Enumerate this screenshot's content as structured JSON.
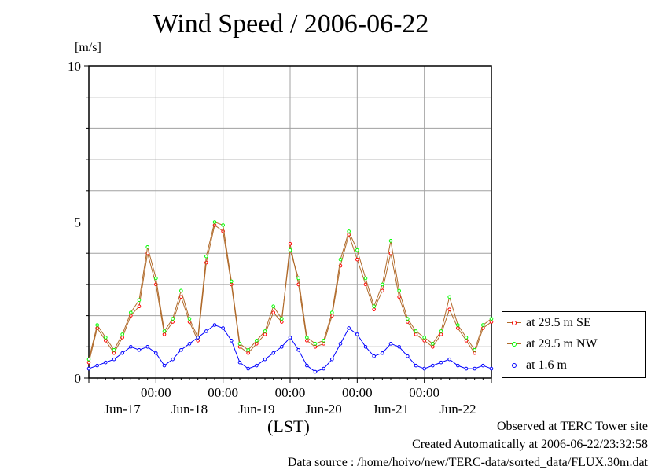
{
  "title": "Wind Speed / 2006-06-22",
  "footer": {
    "line1": "Observed at TERC Tower site",
    "line2": "Created Automatically at 2006-06-22/23:32:58",
    "line3": "Data source : /home/hoivo/new/TERC-data/sorted_data/FLUX.30m.dat"
  },
  "chart_data": {
    "type": "line",
    "title": "Wind Speed / 2006-06-22",
    "ylabel": "[m/s]",
    "xlabel": "(LST)",
    "ylim": [
      0,
      10
    ],
    "xlim_hours": [
      0,
      144
    ],
    "y_ticks": [
      "0",
      "5",
      "10"
    ],
    "x_time_ticks": [
      "00:00",
      "00:00",
      "00:00",
      "00:00",
      "00:00"
    ],
    "x_date_labels": [
      "Jun-17",
      "Jun-18",
      "Jun-19",
      "Jun-20",
      "Jun-21",
      "Jun-22"
    ],
    "grid": true,
    "legend_position": "right",
    "series": [
      {
        "name": "at 29.5 m SE",
        "color": "#ff0000",
        "line_color": "#b06a2a",
        "x_hours": [
          0,
          3,
          6,
          9,
          12,
          15,
          18,
          21,
          24,
          27,
          30,
          33,
          36,
          39,
          42,
          45,
          48,
          51,
          54,
          57,
          60,
          63,
          66,
          69,
          72,
          75,
          78,
          81,
          84,
          87,
          90,
          93,
          96,
          99,
          102,
          105,
          108,
          111,
          114,
          117,
          120,
          123,
          126,
          129,
          132,
          135,
          138,
          141,
          144
        ],
        "values": [
          0.5,
          1.6,
          1.2,
          0.8,
          1.3,
          2.0,
          2.3,
          4.0,
          3.0,
          1.4,
          1.8,
          2.6,
          1.8,
          1.2,
          3.7,
          4.9,
          4.7,
          3.0,
          1.0,
          0.8,
          1.1,
          1.4,
          2.1,
          1.8,
          4.3,
          3.0,
          1.2,
          1.0,
          1.1,
          2.0,
          3.6,
          4.6,
          3.8,
          3.0,
          2.2,
          2.8,
          4.0,
          2.6,
          1.8,
          1.4,
          1.2,
          1.0,
          1.4,
          2.2,
          1.6,
          1.2,
          0.8,
          1.6,
          1.8
        ]
      },
      {
        "name": "at 29.5 m NW",
        "color": "#00ff00",
        "line_color": "#b06a2a",
        "x_hours": [
          0,
          3,
          6,
          9,
          12,
          15,
          18,
          21,
          24,
          27,
          30,
          33,
          36,
          39,
          42,
          45,
          48,
          51,
          54,
          57,
          60,
          63,
          66,
          69,
          72,
          75,
          78,
          81,
          84,
          87,
          90,
          93,
          96,
          99,
          102,
          105,
          108,
          111,
          114,
          117,
          120,
          123,
          126,
          129,
          132,
          135,
          138,
          141,
          144
        ],
        "values": [
          0.6,
          1.7,
          1.3,
          0.9,
          1.4,
          2.1,
          2.5,
          4.2,
          3.2,
          1.5,
          1.9,
          2.8,
          1.9,
          1.3,
          3.9,
          5.0,
          4.9,
          3.1,
          1.1,
          0.9,
          1.2,
          1.5,
          2.3,
          1.9,
          4.1,
          3.2,
          1.3,
          1.1,
          1.2,
          2.1,
          3.8,
          4.7,
          4.1,
          3.2,
          2.3,
          3.0,
          4.4,
          2.8,
          1.9,
          1.5,
          1.3,
          1.1,
          1.5,
          2.6,
          1.7,
          1.3,
          0.9,
          1.7,
          1.9
        ]
      },
      {
        "name": "at 1.6 m",
        "color": "#0000ff",
        "line_color": "#0000ff",
        "x_hours": [
          0,
          3,
          6,
          9,
          12,
          15,
          18,
          21,
          24,
          27,
          30,
          33,
          36,
          39,
          42,
          45,
          48,
          51,
          54,
          57,
          60,
          63,
          66,
          69,
          72,
          75,
          78,
          81,
          84,
          87,
          90,
          93,
          96,
          99,
          102,
          105,
          108,
          111,
          114,
          117,
          120,
          123,
          126,
          129,
          132,
          135,
          138,
          141,
          144
        ],
        "values": [
          0.3,
          0.4,
          0.5,
          0.6,
          0.8,
          1.0,
          0.9,
          1.0,
          0.8,
          0.4,
          0.6,
          0.9,
          1.1,
          1.3,
          1.5,
          1.7,
          1.6,
          1.2,
          0.5,
          0.3,
          0.4,
          0.6,
          0.8,
          1.0,
          1.3,
          0.9,
          0.4,
          0.2,
          0.3,
          0.6,
          1.1,
          1.6,
          1.4,
          1.0,
          0.7,
          0.8,
          1.1,
          1.0,
          0.7,
          0.4,
          0.3,
          0.4,
          0.5,
          0.6,
          0.4,
          0.3,
          0.3,
          0.4,
          0.3
        ]
      }
    ]
  }
}
